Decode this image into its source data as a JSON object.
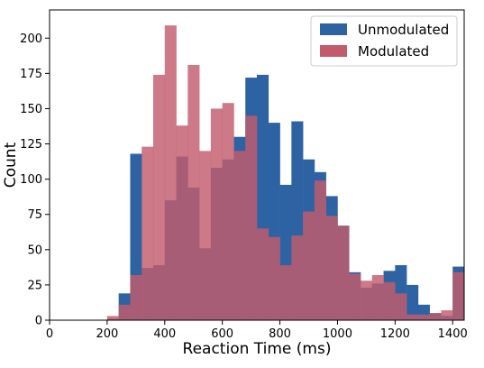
{
  "chart_data": {
    "type": "histogram",
    "xlabel": "Reaction Time (ms)",
    "ylabel": "Count",
    "xlim": [
      0,
      1440
    ],
    "ylim": [
      0,
      220
    ],
    "xticks": [
      0,
      200,
      400,
      600,
      800,
      1000,
      1200,
      1400
    ],
    "yticks": [
      0,
      25,
      50,
      75,
      100,
      125,
      150,
      175,
      200
    ],
    "grid": false,
    "legend_position": "top-right",
    "bin_edges": [
      200,
      240,
      280,
      320,
      360,
      400,
      440,
      480,
      520,
      560,
      600,
      640,
      680,
      720,
      760,
      800,
      840,
      880,
      920,
      960,
      1000,
      1040,
      1080,
      1120,
      1160,
      1200,
      1240,
      1280,
      1320,
      1360,
      1400,
      1440
    ],
    "series": [
      {
        "name": "Unmodulated",
        "color": "#2e63a3",
        "values": [
          1,
          19,
          118,
          37,
          39,
          85,
          116,
          94,
          51,
          108,
          114,
          130,
          172,
          174,
          140,
          96,
          141,
          114,
          105,
          88,
          67,
          34,
          23,
          26,
          35,
          39,
          25,
          11,
          5,
          3,
          38
        ]
      },
      {
        "name": "Modulated",
        "color": "#c25c6d",
        "values": [
          3,
          11,
          32,
          123,
          174,
          209,
          138,
          181,
          120,
          150,
          154,
          120,
          145,
          65,
          59,
          39,
          60,
          77,
          99,
          74,
          67,
          33,
          28,
          32,
          27,
          19,
          4,
          4,
          5,
          7,
          34
        ]
      }
    ]
  }
}
